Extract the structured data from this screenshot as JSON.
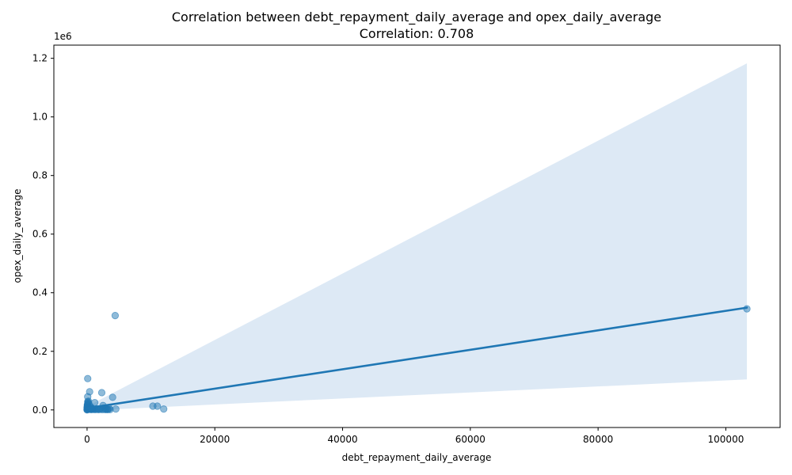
{
  "chart_data": {
    "type": "scatter",
    "title": "Correlation between debt_repayment_daily_average and opex_daily_average",
    "subtitle": "Correlation: 0.708",
    "xlabel": "debt_repayment_daily_average",
    "ylabel": "opex_daily_average",
    "y_offset_text": "1e6",
    "xlim": [
      -5200,
      108500
    ],
    "ylim": [
      -0.06,
      1.245
    ],
    "x_ticks": [
      0,
      20000,
      40000,
      60000,
      80000,
      100000
    ],
    "x_tick_labels": [
      "0",
      "20000",
      "40000",
      "60000",
      "80000",
      "100000"
    ],
    "y_ticks": [
      0.0,
      0.2,
      0.4,
      0.6,
      0.8,
      1.0,
      1.2
    ],
    "y_tick_labels": [
      "0.0",
      "0.2",
      "0.4",
      "0.6",
      "0.8",
      "1.0",
      "1.2"
    ],
    "grid": false,
    "legend": "none",
    "colors": {
      "points": "#1f77b4",
      "line": "#1f77b4",
      "band": "#c6dbef"
    },
    "points": {
      "x": [
        103300,
        4400,
        100,
        400,
        2300,
        4000,
        100,
        1200,
        10300,
        11000,
        12000,
        4500,
        2500,
        3500,
        3000,
        2000,
        1500,
        1000,
        800,
        600,
        300,
        200,
        150,
        100,
        50,
        30,
        20,
        10,
        5,
        0,
        0,
        50,
        80,
        120,
        250,
        350,
        500,
        700,
        900,
        1100,
        1300,
        1600,
        1800,
        2100,
        2400,
        2700,
        2900,
        3200,
        3300,
        3600,
        150,
        60,
        90,
        40,
        70,
        200,
        300,
        450,
        550,
        650
      ],
      "y": [
        0.345,
        0.322,
        0.107,
        0.062,
        0.059,
        0.043,
        0.045,
        0.025,
        0.013,
        0.013,
        0.003,
        0.003,
        0.015,
        0.005,
        0.003,
        0.002,
        0.004,
        0.002,
        0.005,
        0.01,
        0.02,
        0.03,
        0.025,
        0.028,
        0.015,
        0.01,
        0.005,
        0.002,
        0.001,
        0.0,
        0.008,
        0.018,
        0.012,
        0.006,
        0.004,
        0.003,
        0.002,
        0.001,
        0.003,
        0.002,
        0.001,
        0.002,
        0.001,
        0.003,
        0.001,
        0.002,
        0.001,
        0.001,
        0.002,
        0.001,
        0.022,
        0.012,
        0.007,
        0.003,
        0.016,
        0.009,
        0.004,
        0.002,
        0.006,
        0.003
      ]
    },
    "regression": {
      "x": [
        0,
        103300
      ],
      "y": [
        0.006,
        0.349
      ]
    },
    "confidence_band": {
      "x": [
        0,
        103300
      ],
      "lower": [
        -0.002,
        0.104
      ],
      "upper": [
        0.012,
        1.183
      ]
    }
  }
}
